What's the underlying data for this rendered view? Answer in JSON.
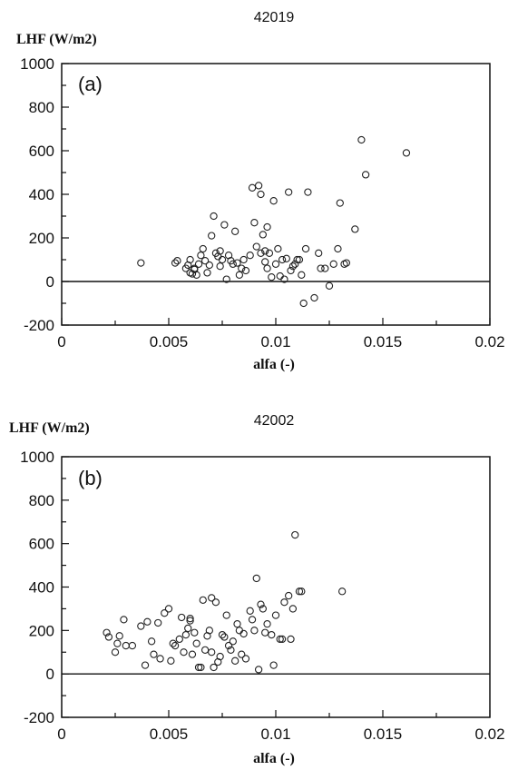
{
  "chart_data": [
    {
      "type": "scatter",
      "title": "42019",
      "panel_label": "(a)",
      "ylabel": "LHF (W/m2)",
      "xlabel": "alfa (-)",
      "xlim": [
        0,
        0.02
      ],
      "ylim": [
        -200,
        1000
      ],
      "xticks": [
        "0",
        "0.005",
        "0.01",
        "0.015",
        "0.02"
      ],
      "yticks": [
        "1000",
        "800",
        "600",
        "400",
        "200",
        "0",
        "-200"
      ],
      "grid": false,
      "marker": "open-circle",
      "zero_line": true,
      "x": [
        0.0037,
        0.0053,
        0.0054,
        0.0058,
        0.0059,
        0.006,
        0.006,
        0.0061,
        0.0062,
        0.0062,
        0.0063,
        0.0064,
        0.0065,
        0.0066,
        0.0067,
        0.0068,
        0.0069,
        0.007,
        0.0071,
        0.0072,
        0.0073,
        0.0074,
        0.0074,
        0.0075,
        0.0076,
        0.0077,
        0.0078,
        0.0079,
        0.008,
        0.0081,
        0.0082,
        0.0083,
        0.0084,
        0.0085,
        0.0086,
        0.0088,
        0.0089,
        0.009,
        0.0091,
        0.0092,
        0.0093,
        0.0093,
        0.0094,
        0.0095,
        0.0095,
        0.0096,
        0.0096,
        0.0097,
        0.0098,
        0.0099,
        0.01,
        0.0101,
        0.0102,
        0.0103,
        0.0104,
        0.0105,
        0.0106,
        0.0107,
        0.0108,
        0.0109,
        0.011,
        0.0111,
        0.0112,
        0.0113,
        0.0114,
        0.0115,
        0.0118,
        0.012,
        0.0121,
        0.0123,
        0.0125,
        0.0127,
        0.0129,
        0.013,
        0.0132,
        0.0133,
        0.0137,
        0.014,
        0.0142,
        0.0161
      ],
      "y": [
        85,
        85,
        95,
        60,
        75,
        40,
        100,
        35,
        55,
        60,
        30,
        80,
        120,
        150,
        95,
        40,
        75,
        210,
        300,
        130,
        115,
        70,
        140,
        100,
        260,
        10,
        120,
        95,
        80,
        230,
        85,
        30,
        60,
        100,
        50,
        120,
        430,
        270,
        160,
        440,
        130,
        400,
        215,
        90,
        140,
        250,
        60,
        130,
        20,
        370,
        80,
        150,
        25,
        100,
        10,
        105,
        410,
        50,
        70,
        80,
        100,
        100,
        30,
        -100,
        150,
        410,
        -75,
        130,
        60,
        60,
        -20,
        80,
        150,
        360,
        80,
        85,
        240,
        650,
        490,
        590
      ],
      "bound_x_marker": "0.0095,0.0093"
    },
    {
      "type": "scatter",
      "title": "42002",
      "panel_label": "(b)",
      "ylabel": "LHF (W/m2)",
      "xlabel": "alfa (-)",
      "xlim": [
        0,
        0.02
      ],
      "ylim": [
        -200,
        1000
      ],
      "xticks": [
        "0",
        "0.005",
        "0.01",
        "0.015",
        "0.02"
      ],
      "yticks": [
        "1000",
        "800",
        "600",
        "400",
        "200",
        "0",
        "-200"
      ],
      "grid": false,
      "marker": "open-circle",
      "zero_line": true,
      "x": [
        0.0021,
        0.0022,
        0.0025,
        0.0026,
        0.0027,
        0.0029,
        0.003,
        0.0033,
        0.0037,
        0.0039,
        0.004,
        0.0042,
        0.0043,
        0.0045,
        0.0046,
        0.0048,
        0.005,
        0.0051,
        0.0052,
        0.0053,
        0.0055,
        0.0056,
        0.0057,
        0.0058,
        0.0059,
        0.006,
        0.006,
        0.0061,
        0.0062,
        0.0063,
        0.0064,
        0.0065,
        0.0066,
        0.0067,
        0.0068,
        0.0069,
        0.007,
        0.007,
        0.0071,
        0.0072,
        0.0073,
        0.0074,
        0.0075,
        0.0076,
        0.0077,
        0.0078,
        0.0079,
        0.008,
        0.0081,
        0.0082,
        0.0083,
        0.0084,
        0.0085,
        0.0086,
        0.0088,
        0.0089,
        0.009,
        0.0091,
        0.0092,
        0.0093,
        0.0094,
        0.0095,
        0.0096,
        0.0098,
        0.0099,
        0.01,
        0.0102,
        0.0103,
        0.0104,
        0.0106,
        0.0107,
        0.0108,
        0.0109,
        0.0111,
        0.0112,
        0.0131
      ],
      "y": [
        190,
        170,
        100,
        140,
        175,
        250,
        130,
        130,
        220,
        40,
        240,
        150,
        90,
        235,
        70,
        280,
        300,
        60,
        140,
        130,
        160,
        260,
        100,
        180,
        210,
        245,
        255,
        90,
        190,
        140,
        30,
        30,
        340,
        110,
        175,
        200,
        100,
        350,
        30,
        330,
        55,
        80,
        180,
        170,
        270,
        130,
        110,
        150,
        60,
        230,
        200,
        90,
        185,
        70,
        290,
        250,
        200,
        440,
        20,
        320,
        300,
        190,
        230,
        180,
        40,
        270,
        160,
        160,
        330,
        360,
        160,
        300,
        640,
        380,
        380,
        380
      ],
      "bound_x_marker": "0.0093"
    }
  ]
}
